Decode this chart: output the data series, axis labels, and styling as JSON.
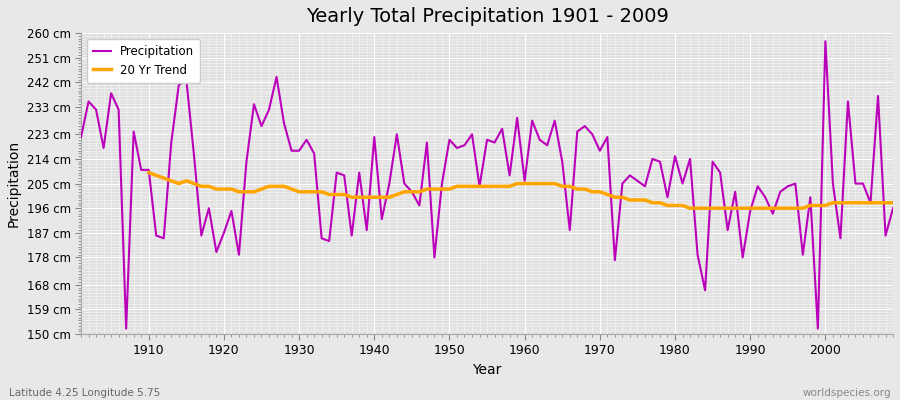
{
  "title": "Yearly Total Precipitation 1901 - 2009",
  "xlabel": "Year",
  "ylabel": "Precipitation",
  "bottom_left_label": "Latitude 4.25 Longitude 5.75",
  "bottom_right_label": "worldspecies.org",
  "ylim": [
    150,
    260
  ],
  "yticks": [
    150,
    159,
    168,
    178,
    187,
    196,
    205,
    214,
    223,
    233,
    242,
    251,
    260
  ],
  "ytick_labels": [
    "150 cm",
    "159 cm",
    "168 cm",
    "178 cm",
    "187 cm",
    "196 cm",
    "205 cm",
    "214 cm",
    "223 cm",
    "233 cm",
    "242 cm",
    "251 cm",
    "260 cm"
  ],
  "xlim": [
    1901,
    2009
  ],
  "xticks": [
    1910,
    1920,
    1930,
    1940,
    1950,
    1960,
    1970,
    1980,
    1990,
    2000
  ],
  "precip_color": "#bb00bb",
  "trend_color": "#ffa500",
  "fig_bg_color": "#e8e8e8",
  "plot_bg_color": "#e0e0e0",
  "grid_color": "#ffffff",
  "years": [
    1901,
    1902,
    1903,
    1904,
    1905,
    1906,
    1907,
    1908,
    1909,
    1910,
    1911,
    1912,
    1913,
    1914,
    1915,
    1916,
    1917,
    1918,
    1919,
    1920,
    1921,
    1922,
    1923,
    1924,
    1925,
    1926,
    1927,
    1928,
    1929,
    1930,
    1931,
    1932,
    1933,
    1934,
    1935,
    1936,
    1937,
    1938,
    1939,
    1940,
    1941,
    1942,
    1943,
    1944,
    1945,
    1946,
    1947,
    1948,
    1949,
    1950,
    1951,
    1952,
    1953,
    1954,
    1955,
    1956,
    1957,
    1958,
    1959,
    1960,
    1961,
    1962,
    1963,
    1964,
    1965,
    1966,
    1967,
    1968,
    1969,
    1970,
    1971,
    1972,
    1973,
    1974,
    1975,
    1976,
    1977,
    1978,
    1979,
    1980,
    1981,
    1982,
    1983,
    1984,
    1985,
    1986,
    1987,
    1988,
    1989,
    1990,
    1991,
    1992,
    1993,
    1994,
    1995,
    1996,
    1997,
    1998,
    1999,
    2000,
    2001,
    2002,
    2003,
    2004,
    2005,
    2006,
    2007,
    2008,
    2009
  ],
  "precip": [
    222,
    235,
    232,
    218,
    238,
    232,
    152,
    224,
    210,
    210,
    186,
    185,
    220,
    241,
    243,
    216,
    186,
    196,
    180,
    187,
    195,
    179,
    213,
    234,
    226,
    232,
    244,
    227,
    217,
    217,
    221,
    216,
    185,
    184,
    209,
    208,
    186,
    209,
    188,
    222,
    192,
    205,
    223,
    205,
    202,
    197,
    220,
    178,
    205,
    221,
    218,
    219,
    223,
    204,
    221,
    220,
    225,
    208,
    229,
    206,
    228,
    221,
    219,
    228,
    213,
    188,
    224,
    226,
    223,
    217,
    222,
    177,
    205,
    208,
    206,
    204,
    214,
    213,
    200,
    215,
    205,
    214,
    179,
    166,
    213,
    209,
    188,
    202,
    178,
    195,
    204,
    200,
    194,
    202,
    204,
    205,
    179,
    200,
    152,
    257,
    205,
    185,
    235,
    205,
    205,
    198,
    237,
    186,
    196
  ],
  "trend": [
    null,
    null,
    null,
    null,
    null,
    null,
    null,
    null,
    null,
    209,
    208,
    207,
    206,
    205,
    206,
    205,
    204,
    204,
    203,
    203,
    203,
    202,
    202,
    202,
    203,
    204,
    204,
    204,
    203,
    202,
    202,
    202,
    202,
    201,
    201,
    201,
    200,
    200,
    200,
    200,
    200,
    200,
    201,
    202,
    202,
    202,
    203,
    203,
    203,
    203,
    204,
    204,
    204,
    204,
    204,
    204,
    204,
    204,
    205,
    205,
    205,
    205,
    205,
    205,
    204,
    204,
    203,
    203,
    202,
    202,
    201,
    200,
    200,
    199,
    199,
    199,
    198,
    198,
    197,
    197,
    197,
    196,
    196,
    196,
    196,
    196,
    196,
    196,
    196,
    196,
    196,
    196,
    196,
    196,
    196,
    196,
    196,
    197,
    197,
    197,
    198,
    198,
    198,
    198,
    198,
    198,
    198,
    198,
    198
  ]
}
